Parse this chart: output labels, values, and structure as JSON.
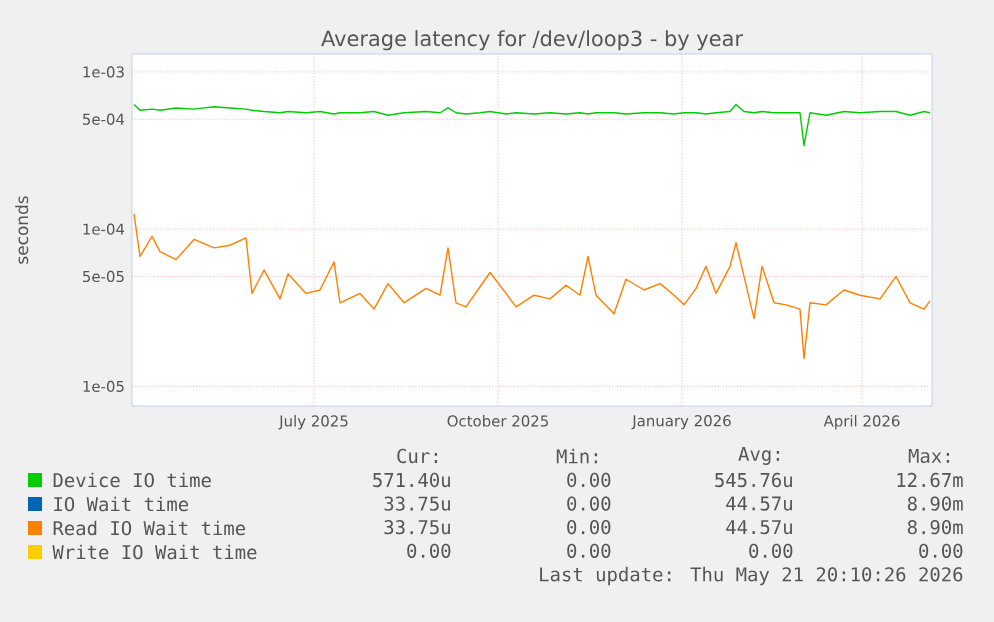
{
  "chart_data": {
    "type": "line",
    "title": "Average latency for /dev/loop3 - by year",
    "ylabel": "seconds",
    "x": [
      "2025-04-02",
      "2025-04-05",
      "2025-04-11",
      "2025-04-15",
      "2025-04-23",
      "2025-05-02",
      "2025-05-12",
      "2025-05-20",
      "2025-05-28",
      "2025-05-31",
      "2025-06-06",
      "2025-06-14",
      "2025-06-18",
      "2025-06-27",
      "2025-07-04",
      "2025-07-11",
      "2025-07-14",
      "2025-07-24",
      "2025-07-31",
      "2025-08-07",
      "2025-08-15",
      "2025-08-26",
      "2025-09-02",
      "2025-09-06",
      "2025-09-10",
      "2025-09-15",
      "2025-09-22",
      "2025-09-27",
      "2025-10-05",
      "2025-10-10",
      "2025-10-19",
      "2025-10-27",
      "2025-11-04",
      "2025-11-11",
      "2025-11-15",
      "2025-11-19",
      "2025-11-28",
      "2025-12-04",
      "2025-12-13",
      "2025-12-21",
      "2025-12-28",
      "2026-01-02",
      "2026-01-08",
      "2026-01-13",
      "2026-01-18",
      "2026-01-25",
      "2026-01-28",
      "2026-02-01",
      "2026-02-06",
      "2026-02-10",
      "2026-02-16",
      "2026-02-22",
      "2026-03-01",
      "2026-03-03",
      "2026-03-06",
      "2026-03-14",
      "2026-03-23",
      "2026-03-31",
      "2026-04-10",
      "2026-04-18",
      "2026-04-25",
      "2026-05-02",
      "2026-05-05"
    ],
    "series": [
      {
        "name": "Device IO time",
        "color": "#00cc00",
        "values": [
          0.00062,
          0.00057,
          0.00058,
          0.00057,
          0.00059,
          0.00058,
          0.0006,
          0.00059,
          0.00058,
          0.00057,
          0.00056,
          0.00055,
          0.00056,
          0.00055,
          0.00056,
          0.00054,
          0.00055,
          0.00055,
          0.00056,
          0.00053,
          0.00055,
          0.00056,
          0.00055,
          0.00059,
          0.00055,
          0.00054,
          0.00055,
          0.00056,
          0.00054,
          0.00055,
          0.00054,
          0.00055,
          0.00054,
          0.00055,
          0.00054,
          0.00055,
          0.00055,
          0.00054,
          0.00055,
          0.00055,
          0.00054,
          0.00055,
          0.00055,
          0.00054,
          0.00055,
          0.00056,
          0.00062,
          0.00056,
          0.00055,
          0.00056,
          0.00055,
          0.00055,
          0.00055,
          0.00034,
          0.00055,
          0.00053,
          0.00056,
          0.00055,
          0.00056,
          0.00056,
          0.00053,
          0.00056,
          0.00055
        ]
      },
      {
        "name": "IO Wait time",
        "color": "#0066b3",
        "values": [
          null,
          null,
          null,
          null,
          null,
          null,
          null,
          null,
          null,
          null,
          null,
          null,
          null,
          null,
          null,
          null,
          null,
          null,
          null,
          null,
          null,
          null,
          null,
          null,
          null,
          null,
          null,
          null,
          null,
          null,
          null,
          null,
          null,
          null,
          null,
          null,
          null,
          null,
          null,
          null,
          null,
          null,
          null,
          null,
          null,
          null,
          null,
          null,
          null,
          null,
          null,
          null,
          null,
          null,
          null,
          null,
          null,
          null,
          null,
          null,
          null,
          null,
          null
        ]
      },
      {
        "name": "Read IO Wait time",
        "color": "#ff8000",
        "values": [
          0.000125,
          6.7e-05,
          9e-05,
          7.2e-05,
          6.4e-05,
          8.6e-05,
          7.6e-05,
          7.9e-05,
          8.8e-05,
          3.9e-05,
          5.5e-05,
          3.6e-05,
          5.2e-05,
          3.9e-05,
          4.1e-05,
          6.2e-05,
          3.4e-05,
          3.9e-05,
          3.1e-05,
          4.5e-05,
          3.4e-05,
          4.2e-05,
          3.8e-05,
          7.6e-05,
          3.4e-05,
          3.2e-05,
          4.3e-05,
          5.3e-05,
          3.9e-05,
          3.2e-05,
          3.8e-05,
          3.6e-05,
          4.4e-05,
          3.8e-05,
          6.7e-05,
          3.8e-05,
          2.9e-05,
          4.8e-05,
          4.1e-05,
          4.5e-05,
          3.8e-05,
          3.3e-05,
          4.2e-05,
          5.8e-05,
          3.9e-05,
          5.8e-05,
          8.2e-05,
          5e-05,
          2.7e-05,
          5.8e-05,
          3.4e-05,
          3.3e-05,
          3.1e-05,
          1.5e-05,
          3.4e-05,
          3.3e-05,
          4.1e-05,
          3.8e-05,
          3.6e-05,
          5e-05,
          3.4e-05,
          3.1e-05,
          3.5e-05
        ]
      },
      {
        "name": "Write IO Wait time",
        "color": "#ffcc00",
        "values": [
          null,
          null,
          null,
          null,
          null,
          null,
          null,
          null,
          null,
          null,
          null,
          null,
          null,
          null,
          null,
          null,
          null,
          null,
          null,
          null,
          null,
          null,
          null,
          null,
          null,
          null,
          null,
          null,
          null,
          null,
          null,
          null,
          null,
          null,
          null,
          null,
          null,
          null,
          null,
          null,
          null,
          null,
          null,
          null,
          null,
          null,
          null,
          null,
          null,
          null,
          null,
          null,
          null,
          null,
          null,
          null,
          null,
          null,
          null,
          null,
          null,
          null,
          null
        ]
      }
    ],
    "xlim": [
      "2025-04-01",
      "2026-05-06"
    ],
    "xticks": [
      {
        "value": "2025-07-01",
        "label": "July 2025"
      },
      {
        "value": "2025-10-01",
        "label": "October 2025"
      },
      {
        "value": "2026-01-01",
        "label": "January 2026"
      },
      {
        "value": "2026-04-01",
        "label": "April 2026"
      }
    ],
    "log": "y",
    "ylim": [
      7.5e-06,
      0.0013
    ],
    "yticks": [
      {
        "value": 1e-05,
        "label": "1e-05"
      },
      {
        "value": 5e-05,
        "label": "5e-05"
      },
      {
        "value": 0.0001,
        "label": "1e-04"
      },
      {
        "value": 0.0005,
        "label": "5e-04"
      },
      {
        "value": 0.001,
        "label": "1e-03"
      }
    ],
    "grid": true,
    "legend": "bottom",
    "marker": "none",
    "line_style": "solid",
    "annotations": [
      "Cur:",
      "Min:",
      "Avg:",
      "Max:",
      "571.40u",
      "0.00",
      "545.76u",
      "12.67m",
      "33.75u",
      "0.00",
      "44.57u",
      "8.90m",
      "33.75u",
      "0.00",
      "44.57u",
      "8.90m",
      "0.00",
      "0.00",
      "0.00",
      "0.00",
      "Last update: Thu May 21 20:10:26 2026"
    ]
  }
}
